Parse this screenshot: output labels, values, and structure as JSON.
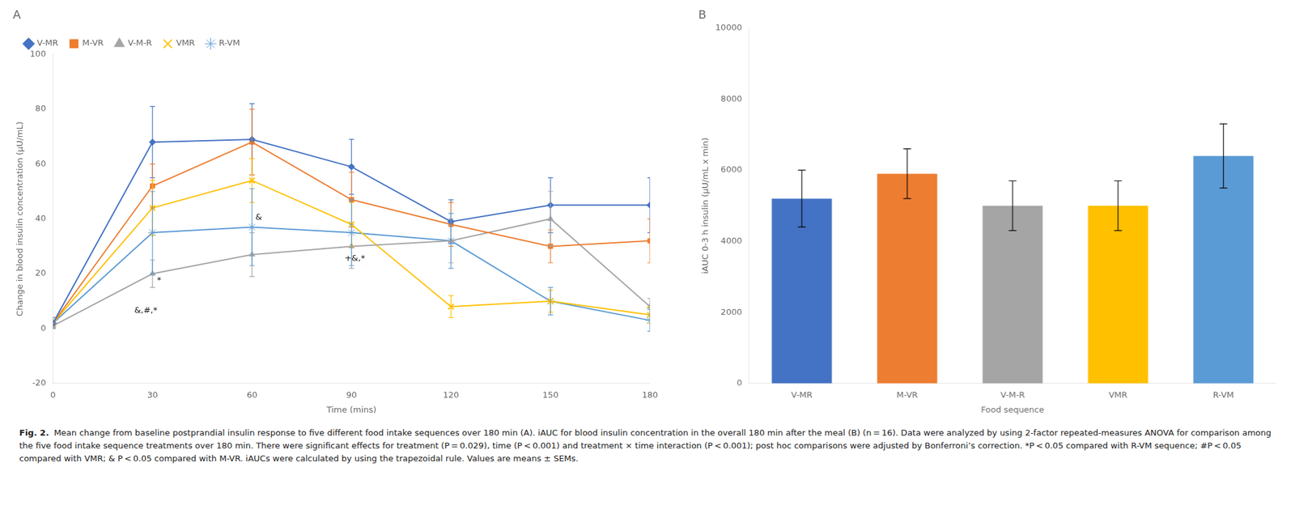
{
  "chart_data": [
    {
      "type": "line",
      "title": "A",
      "x": [
        0,
        30,
        60,
        90,
        120,
        150,
        180
      ],
      "series": [
        {
          "name": "V-MR",
          "color": "#4472C4",
          "marker": "diamond",
          "values": [
            2,
            68,
            69,
            59,
            39,
            45,
            45
          ],
          "errors": [
            2,
            13,
            13,
            10,
            8,
            10,
            10
          ]
        },
        {
          "name": "M-VR",
          "color": "#ED7D31",
          "marker": "square",
          "values": [
            2,
            52,
            68,
            47,
            38,
            30,
            32
          ],
          "errors": [
            2,
            8,
            12,
            10,
            8,
            6,
            8
          ]
        },
        {
          "name": "V-M-R",
          "color": "#A5A5A5",
          "marker": "triangle",
          "values": [
            1,
            20,
            27,
            30,
            32,
            40,
            8
          ],
          "errors": [
            1,
            5,
            8,
            8,
            8,
            10,
            3
          ]
        },
        {
          "name": "VMR",
          "color": "#FFC000",
          "marker": "x",
          "values": [
            2,
            44,
            54,
            38,
            8,
            10,
            5
          ],
          "errors": [
            2,
            10,
            8,
            8,
            4,
            4,
            3
          ]
        },
        {
          "name": "R-VM",
          "color": "#5B9BD5",
          "marker": "star",
          "values": [
            2,
            35,
            37,
            35,
            32,
            10,
            3
          ],
          "errors": [
            2,
            15,
            14,
            12,
            10,
            5,
            4
          ]
        }
      ],
      "xlabel": "Time (mins)",
      "ylabel": "Change in blood insulin concentration (µU/mL)",
      "xlim": [
        0,
        180
      ],
      "ylim": [
        -20,
        100
      ],
      "xticks": [
        0,
        30,
        60,
        90,
        120,
        150,
        180
      ],
      "yticks": [
        -20,
        0,
        20,
        40,
        60,
        80,
        100
      ],
      "grid": false,
      "legend": "upper left",
      "annotations": [
        {
          "text": "&,#,*",
          "x": 28,
          "y": 8
        },
        {
          "text": "&",
          "x": 62,
          "y": 42
        },
        {
          "text": "+&,*",
          "x": 91,
          "y": 27
        },
        {
          "text": "*",
          "x": 32,
          "y": 19
        }
      ]
    },
    {
      "type": "bar",
      "title": "B",
      "categories": [
        "V-MR",
        "M-VR",
        "V-M-R",
        "VMR",
        "R-VM"
      ],
      "values": [
        5200,
        5900,
        5000,
        5000,
        6400
      ],
      "errors": [
        800,
        700,
        700,
        700,
        900
      ],
      "colors": [
        "#4472C4",
        "#ED7D31",
        "#A5A5A5",
        "#FFC000",
        "#5B9BD5"
      ],
      "xlabel": "Food sequence",
      "ylabel": "iAUC 0-3 h insulin (µU/mL x min)",
      "ylim": [
        0,
        10000
      ],
      "yticks": [
        0,
        2000,
        4000,
        6000,
        8000,
        10000
      ],
      "grid": false
    }
  ],
  "caption_bold": "Fig. 2.",
  "caption": "Mean change from baseline postprandial insulin response to five different food intake sequences over 180 min (A). iAUC for blood insulin concentration in the overall 180 min after the meal (B) (n = 16). Data were analyzed by using 2-factor repeated-measures ANOVA for comparison among the five food intake sequence treatments over 180 min. There were significant effects for treatment (P = 0.029), time (P < 0.001) and treatment × time interaction (P < 0.001); post hoc comparisons were adjusted by Bonferroni’s correction. *P < 0.05 compared with R-VM sequence; #P < 0.05 compared with VMR; & P < 0.05 compared with M-VR. iAUCs were calculated by using the trapezoidal rule. Values are means ± SEMs."
}
